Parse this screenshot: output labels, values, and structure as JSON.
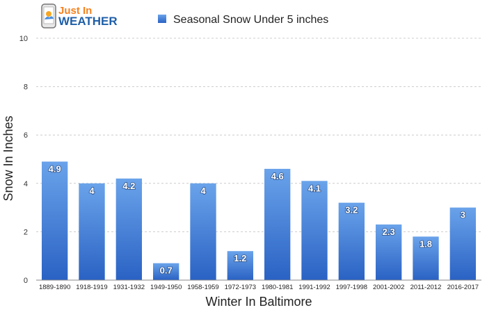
{
  "logo": {
    "line1": "Just In",
    "line2": "WEATHER"
  },
  "colors": {
    "bar_top": "#6aa3ea",
    "bar_bottom": "#2a62c4",
    "grid": "#cccccc",
    "axis": "#888888"
  },
  "chart_data": {
    "type": "bar",
    "title": "",
    "xlabel": "Winter In Baltimore",
    "ylabel": "Snow In Inches",
    "ylim": [
      0,
      10
    ],
    "yticks": [
      0,
      2,
      4,
      6,
      8,
      10
    ],
    "grid": true,
    "legend_position": "top",
    "categories": [
      "1889-1890",
      "1918-1919",
      "1931-1932",
      "1949-1950",
      "1958-1959",
      "1972-1973",
      "1980-1981",
      "1991-1992",
      "1997-1998",
      "2001-2002",
      "2011-2012",
      "2016-2017"
    ],
    "series": [
      {
        "name": "Seasonal Snow Under 5 inches",
        "values": [
          4.9,
          4,
          4.2,
          0.7,
          4,
          1.2,
          4.6,
          4.1,
          3.2,
          2.3,
          1.8,
          3
        ]
      }
    ]
  }
}
